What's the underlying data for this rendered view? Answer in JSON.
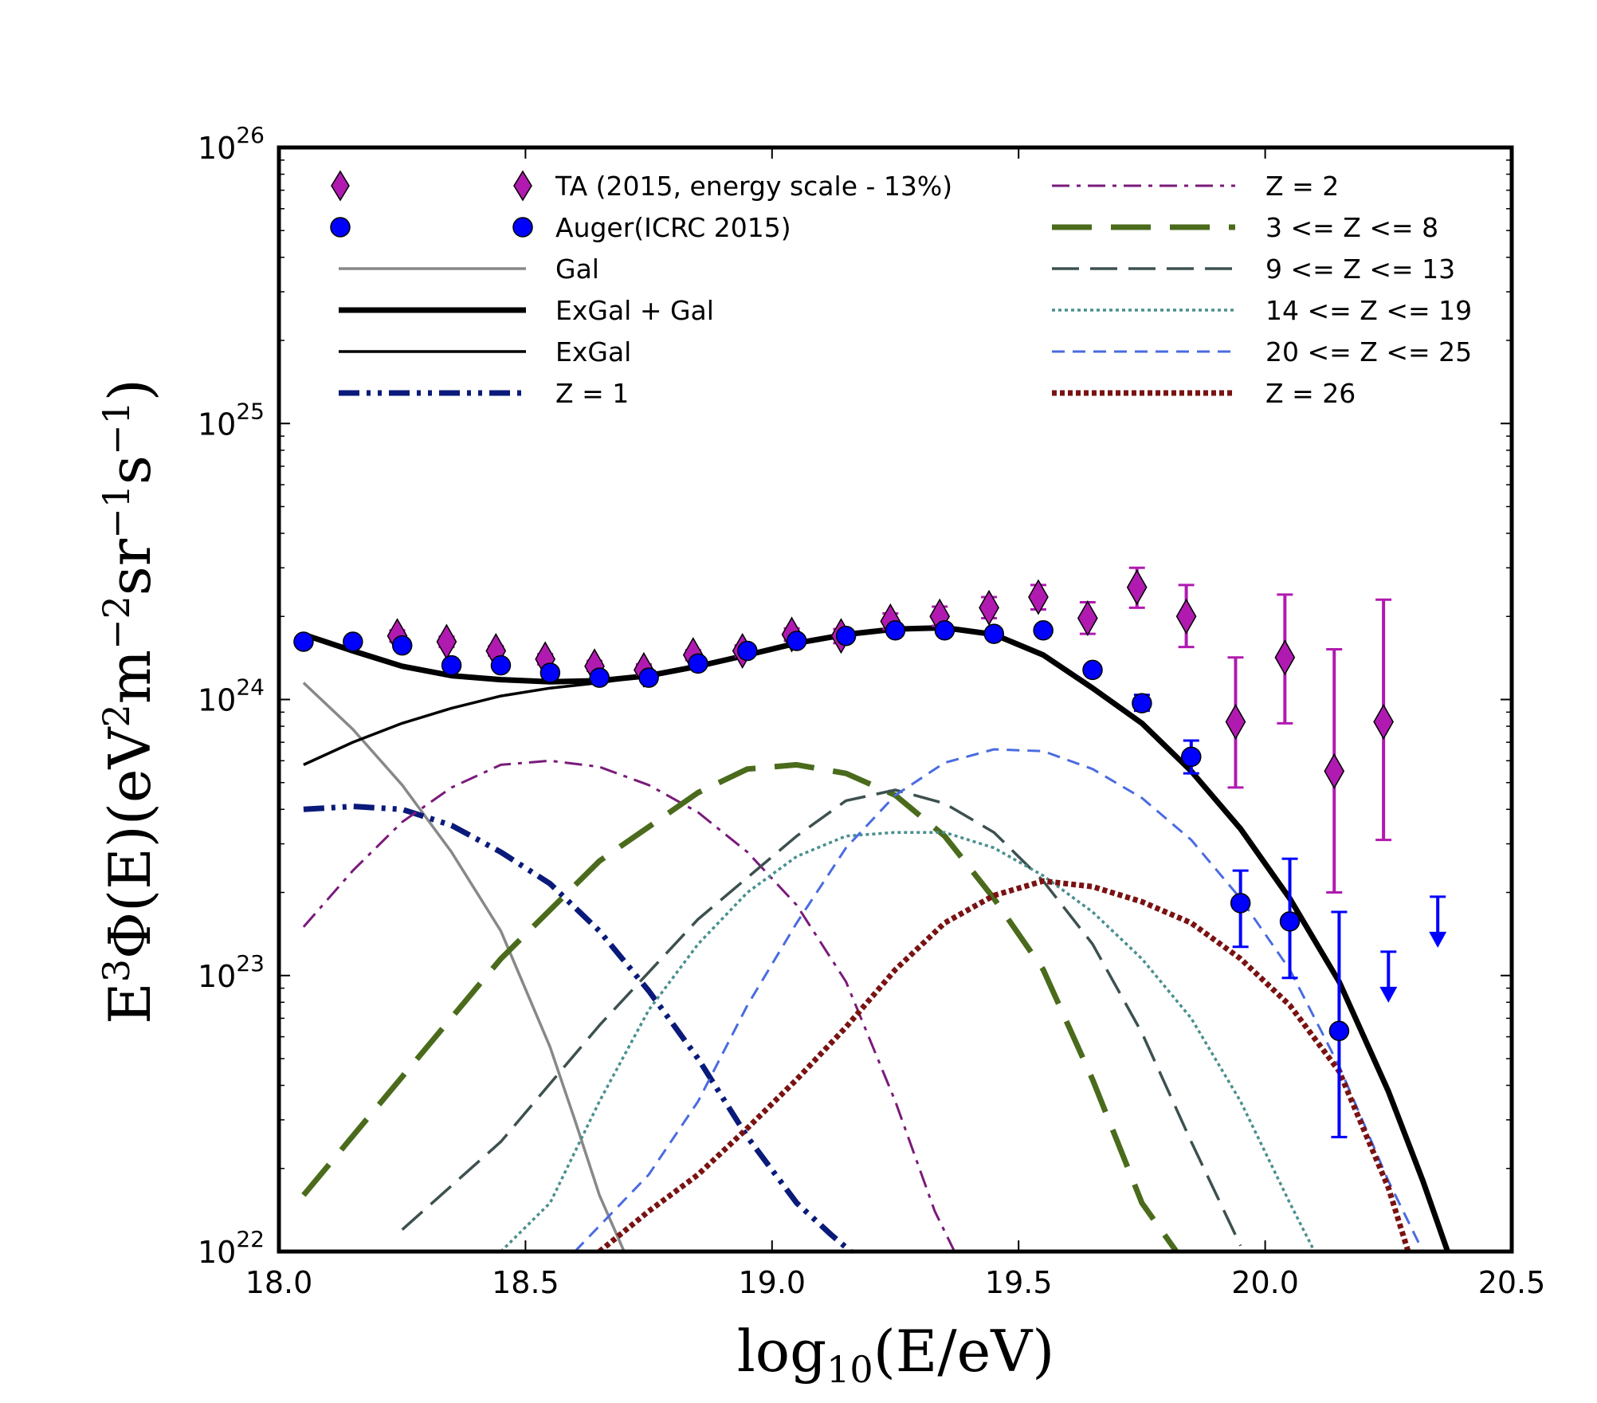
{
  "chart_data": {
    "type": "line",
    "xlabel": "log10(E/eV)",
    "ylabel": "E3Φ(E)(eV2m−2sr−1s−1)",
    "xlim": [
      18.0,
      20.5
    ],
    "ylim": [
      1e+22,
      1e+26
    ],
    "yscale": "log",
    "legend_position": "top",
    "x_ticks": [
      {
        "value": 18.0,
        "label": "18.0"
      },
      {
        "value": 18.5,
        "label": "18.5"
      },
      {
        "value": 19.0,
        "label": "19.0"
      },
      {
        "value": 19.5,
        "label": "19.5"
      },
      {
        "value": 20.0,
        "label": "20.0"
      },
      {
        "value": 20.5,
        "label": "20.5"
      }
    ],
    "y_ticks": [
      {
        "value": 1e+22,
        "base": "10",
        "exp": "22"
      },
      {
        "value": 1e+23,
        "base": "10",
        "exp": "23"
      },
      {
        "value": 1e+24,
        "base": "10",
        "exp": "24"
      },
      {
        "value": 1e+25,
        "base": "10",
        "exp": "25"
      },
      {
        "value": 1e+26,
        "base": "10",
        "exp": "26"
      }
    ],
    "series": [
      {
        "id": "ta",
        "name": "TA (2015, energy scale - 13%)",
        "kind": "markers",
        "marker": "diamond",
        "color": "#b01ab0",
        "legend_col": 0,
        "legend_row": 0,
        "points": [
          {
            "x": 18.24,
            "y": 1.7e+24,
            "lo": 1.62e+24,
            "hi": 1.78e+24
          },
          {
            "x": 18.34,
            "y": 1.62e+24,
            "lo": 1.55e+24,
            "hi": 1.69e+24
          },
          {
            "x": 18.44,
            "y": 1.5e+24,
            "lo": 1.44e+24,
            "hi": 1.56e+24
          },
          {
            "x": 18.54,
            "y": 1.4e+24,
            "lo": 1.34e+24,
            "hi": 1.46e+24
          },
          {
            "x": 18.64,
            "y": 1.32e+24,
            "lo": 1.27e+24,
            "hi": 1.38e+24
          },
          {
            "x": 18.74,
            "y": 1.28e+24,
            "lo": 1.23e+24,
            "hi": 1.34e+24
          },
          {
            "x": 18.84,
            "y": 1.45e+24,
            "lo": 1.39e+24,
            "hi": 1.51e+24
          },
          {
            "x": 18.94,
            "y": 1.5e+24,
            "lo": 1.43e+24,
            "hi": 1.57e+24
          },
          {
            "x": 19.04,
            "y": 1.72e+24,
            "lo": 1.63e+24,
            "hi": 1.81e+24
          },
          {
            "x": 19.14,
            "y": 1.7e+24,
            "lo": 1.6e+24,
            "hi": 1.8e+24
          },
          {
            "x": 19.24,
            "y": 1.92e+24,
            "lo": 1.8e+24,
            "hi": 2.05e+24
          },
          {
            "x": 19.34,
            "y": 2e+24,
            "lo": 1.85e+24,
            "hi": 2.17e+24
          },
          {
            "x": 19.44,
            "y": 2.15e+24,
            "lo": 1.97e+24,
            "hi": 2.35e+24
          },
          {
            "x": 19.54,
            "y": 2.35e+24,
            "lo": 2.12e+24,
            "hi": 2.6e+24
          },
          {
            "x": 19.64,
            "y": 1.97e+24,
            "lo": 1.73e+24,
            "hi": 2.25e+24
          },
          {
            "x": 19.74,
            "y": 2.55e+24,
            "lo": 2.15e+24,
            "hi": 3e+24
          },
          {
            "x": 19.84,
            "y": 2e+24,
            "lo": 1.55e+24,
            "hi": 2.6e+24
          },
          {
            "x": 19.94,
            "y": 8.3e+23,
            "lo": 4.8e+23,
            "hi": 1.42e+24
          },
          {
            "x": 20.04,
            "y": 1.42e+24,
            "lo": 8.2e+23,
            "hi": 2.4e+24
          },
          {
            "x": 20.14,
            "y": 5.5e+23,
            "lo": 2e+23,
            "hi": 1.52e+24
          },
          {
            "x": 20.24,
            "y": 8.3e+23,
            "lo": 3.1e+23,
            "hi": 2.3e+24
          }
        ]
      },
      {
        "id": "auger",
        "name": "Auger(ICRC 2015)",
        "kind": "markers",
        "marker": "circle",
        "color": "#0000ff",
        "legend_col": 0,
        "legend_row": 1,
        "points": [
          {
            "x": 18.05,
            "y": 1.62e+24
          },
          {
            "x": 18.15,
            "y": 1.62e+24
          },
          {
            "x": 18.25,
            "y": 1.57e+24
          },
          {
            "x": 18.35,
            "y": 1.33e+24
          },
          {
            "x": 18.45,
            "y": 1.33e+24
          },
          {
            "x": 18.55,
            "y": 1.25e+24
          },
          {
            "x": 18.65,
            "y": 1.2e+24
          },
          {
            "x": 18.75,
            "y": 1.2e+24
          },
          {
            "x": 18.85,
            "y": 1.35e+24
          },
          {
            "x": 18.95,
            "y": 1.5e+24
          },
          {
            "x": 19.05,
            "y": 1.63e+24
          },
          {
            "x": 19.15,
            "y": 1.7e+24
          },
          {
            "x": 19.25,
            "y": 1.78e+24
          },
          {
            "x": 19.35,
            "y": 1.78e+24
          },
          {
            "x": 19.45,
            "y": 1.73e+24
          },
          {
            "x": 19.55,
            "y": 1.78e+24
          },
          {
            "x": 19.65,
            "y": 1.28e+24
          },
          {
            "x": 19.75,
            "y": 9.7e+23,
            "lo": 9.1e+23,
            "hi": 1.04e+24
          },
          {
            "x": 19.85,
            "y": 6.2e+23,
            "lo": 5.4e+23,
            "hi": 7.1e+23
          },
          {
            "x": 19.95,
            "y": 1.83e+23,
            "lo": 1.27e+23,
            "hi": 2.4e+23
          },
          {
            "x": 20.05,
            "y": 1.57e+23,
            "lo": 9.8e+22,
            "hi": 2.65e+23
          },
          {
            "x": 20.15,
            "y": 6.3e+22,
            "lo": 2.6e+22,
            "hi": 1.7e+23
          }
        ],
        "upper_limits": [
          {
            "x": 20.25,
            "y": 1.22e+23
          },
          {
            "x": 20.35,
            "y": 1.93e+23
          }
        ]
      },
      {
        "id": "gal",
        "name": "Gal",
        "kind": "line",
        "color": "#888888",
        "width": 3.5,
        "dash": "",
        "legend_col": 0,
        "legend_row": 2,
        "x": [
          18.05,
          18.15,
          18.25,
          18.35,
          18.45,
          18.55,
          18.6,
          18.65,
          18.7
        ],
        "y": [
          1.15e+24,
          7.8e+23,
          4.9e+23,
          2.8e+23,
          1.45e+23,
          5.5e+22,
          3e+22,
          1.6e+22,
          1e+22
        ]
      },
      {
        "id": "exgal_gal",
        "name": "ExGal + Gal",
        "kind": "line",
        "color": "#000000",
        "width": 7,
        "dash": "",
        "legend_col": 0,
        "legend_row": 3,
        "x": [
          18.05,
          18.15,
          18.25,
          18.35,
          18.45,
          18.55,
          18.65,
          18.75,
          18.85,
          18.95,
          19.05,
          19.15,
          19.25,
          19.35,
          19.45,
          19.55,
          19.65,
          19.75,
          19.85,
          19.95,
          20.05,
          20.15,
          20.25,
          20.32,
          20.37
        ],
        "y": [
          1.72e+24,
          1.5e+24,
          1.32e+24,
          1.22e+24,
          1.18e+24,
          1.16e+24,
          1.17e+24,
          1.22e+24,
          1.32e+24,
          1.45e+24,
          1.6e+24,
          1.72e+24,
          1.8e+24,
          1.82e+24,
          1.72e+24,
          1.45e+24,
          1.1e+24,
          8.2e+23,
          5.5e+23,
          3.4e+23,
          1.9e+23,
          9.5e+22,
          3.8e+22,
          1.8e+22,
          1e+22
        ]
      },
      {
        "id": "exgal",
        "name": "ExGal",
        "kind": "line",
        "color": "#000000",
        "width": 3.5,
        "dash": "",
        "legend_col": 0,
        "legend_row": 4,
        "x": [
          18.05,
          18.15,
          18.25,
          18.35,
          18.45,
          18.55,
          18.65,
          18.75,
          18.85,
          18.95,
          19.05,
          19.15,
          19.25,
          19.35
        ],
        "y": [
          5.8e+23,
          7e+23,
          8.2e+23,
          9.3e+23,
          1.03e+24,
          1.1e+24,
          1.15e+24,
          1.22e+24,
          1.32e+24,
          1.45e+24,
          1.6e+24,
          1.72e+24,
          1.8e+24,
          1.82e+24
        ]
      },
      {
        "id": "z1",
        "name": "Z = 1",
        "kind": "line",
        "color": "#0a1a7a",
        "width": 7,
        "dash": "26,9,5,9,5,9",
        "legend_col": 0,
        "legend_row": 5,
        "x": [
          18.05,
          18.15,
          18.25,
          18.35,
          18.45,
          18.55,
          18.65,
          18.75,
          18.85,
          18.95,
          19.05,
          19.12,
          19.16
        ],
        "y": [
          4e+23,
          4.1e+23,
          4e+23,
          3.5e+23,
          2.8e+23,
          2.15e+23,
          1.45e+23,
          8.8e+22,
          5e+22,
          2.6e+22,
          1.5e+22,
          1.15e+22,
          1e+22
        ]
      },
      {
        "id": "z2",
        "name": "Z = 2",
        "kind": "line",
        "color": "#7a1a7a",
        "width": 3,
        "dash": "22,9,5,9",
        "legend_col": 1,
        "legend_row": 0,
        "x": [
          18.05,
          18.15,
          18.25,
          18.35,
          18.45,
          18.55,
          18.65,
          18.75,
          18.85,
          18.95,
          19.05,
          19.15,
          19.25,
          19.33,
          19.37
        ],
        "y": [
          1.5e+23,
          2.4e+23,
          3.6e+23,
          4.8e+23,
          5.8e+23,
          6e+23,
          5.7e+23,
          4.9e+23,
          3.9e+23,
          2.8e+23,
          1.8e+23,
          9.5e+22,
          3.5e+22,
          1.4e+22,
          1e+22
        ]
      },
      {
        "id": "z3_8",
        "name": "3 <= Z <= 8",
        "kind": "line",
        "color": "#4a6b1c",
        "width": 7,
        "dash": "50,24",
        "legend_col": 1,
        "legend_row": 1,
        "x": [
          18.05,
          18.25,
          18.45,
          18.65,
          18.85,
          18.95,
          19.05,
          19.15,
          19.25,
          19.35,
          19.45,
          19.55,
          19.65,
          19.75,
          19.82
        ],
        "y": [
          1.6e+22,
          4.3e+22,
          1.15e+23,
          2.6e+23,
          4.6e+23,
          5.6e+23,
          5.8e+23,
          5.4e+23,
          4.5e+23,
          3.2e+23,
          1.9e+23,
          1.05e+23,
          4.2e+22,
          1.5e+22,
          1e+22
        ]
      },
      {
        "id": "z9_13",
        "name": "9 <= Z <= 13",
        "kind": "line",
        "color": "#3d5050",
        "width": 3.5,
        "dash": "34,14",
        "legend_col": 1,
        "legend_row": 2,
        "x": [
          18.25,
          18.45,
          18.65,
          18.85,
          19.05,
          19.15,
          19.25,
          19.35,
          19.45,
          19.55,
          19.65,
          19.75,
          19.85,
          19.95
        ],
        "y": [
          1.2e+22,
          2.5e+22,
          6.6e+22,
          1.6e+23,
          3.2e+23,
          4.3e+23,
          4.7e+23,
          4.2e+23,
          3.3e+23,
          2.2e+23,
          1.3e+23,
          6.2e+22,
          2.5e+22,
          1.05e+22
        ]
      },
      {
        "id": "z14_19",
        "name": "14 <= Z <= 19",
        "kind": "line",
        "color": "#4a8f8f",
        "width": 3.5,
        "dash": "4,4",
        "legend_col": 1,
        "legend_row": 3,
        "x": [
          18.45,
          18.55,
          18.65,
          18.75,
          18.85,
          18.95,
          19.05,
          19.15,
          19.25,
          19.35,
          19.45,
          19.55,
          19.65,
          19.75,
          19.85,
          19.95,
          20.05,
          20.1
        ],
        "y": [
          1e+22,
          1.5e+22,
          3.5e+22,
          7.5e+22,
          1.3e+23,
          2e+23,
          2.7e+23,
          3.2e+23,
          3.3e+23,
          3.3e+23,
          2.9e+23,
          2.3e+23,
          1.7e+23,
          1.15e+23,
          7e+22,
          3.5e+22,
          1.5e+22,
          1e+22
        ]
      },
      {
        "id": "z20_25",
        "name": "20 <= Z <= 25",
        "kind": "line",
        "color": "#4a6be0",
        "width": 3,
        "dash": "16,10",
        "legend_col": 1,
        "legend_row": 4,
        "x": [
          18.6,
          18.75,
          18.85,
          18.95,
          19.05,
          19.15,
          19.25,
          19.35,
          19.45,
          19.55,
          19.65,
          19.75,
          19.85,
          19.95,
          20.05,
          20.15,
          20.25,
          20.32
        ],
        "y": [
          1e+22,
          1.9e+22,
          3.5e+22,
          7.8e+22,
          1.55e+23,
          2.9e+23,
          4.5e+23,
          5.9e+23,
          6.6e+23,
          6.5e+23,
          5.6e+23,
          4.4e+23,
          3.1e+23,
          1.9e+23,
          1.05e+23,
          4.7e+22,
          1.8e+22,
          1e+22
        ]
      },
      {
        "id": "z26",
        "name": "Z = 26",
        "kind": "line",
        "color": "#7a1212",
        "width": 7,
        "dash": "6,4",
        "legend_col": 1,
        "legend_row": 5,
        "x": [
          18.65,
          18.75,
          18.85,
          18.95,
          19.05,
          19.15,
          19.25,
          19.35,
          19.45,
          19.55,
          19.65,
          19.75,
          19.85,
          19.95,
          20.05,
          20.15,
          20.25,
          20.29
        ],
        "y": [
          1e+22,
          1.4e+22,
          1.9e+22,
          2.8e+22,
          4.2e+22,
          6.5e+22,
          1.05e+23,
          1.55e+23,
          1.95e+23,
          2.2e+23,
          2.1e+23,
          1.85e+23,
          1.55e+23,
          1.15e+23,
          7.8e+22,
          4.5e+22,
          1.7e+22,
          1e+22
        ]
      }
    ]
  }
}
